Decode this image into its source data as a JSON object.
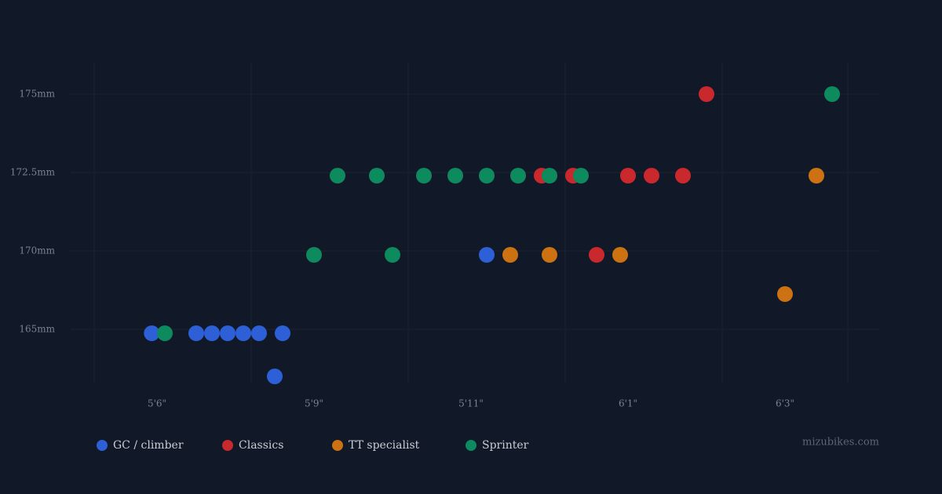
{
  "chart_data": {
    "type": "scatter",
    "xlim": [
      64.35,
      76.2
    ],
    "xticks": [
      {
        "value": 66,
        "label": "5'6\""
      },
      {
        "value": 69,
        "label": "5'9\""
      },
      {
        "value": 71,
        "label": "5'11\""
      },
      {
        "value": 73,
        "label": "6'1\""
      },
      {
        "value": 75,
        "label": "6'3\""
      }
    ],
    "ylim": [
      161.5,
      176
    ],
    "yticks": [
      {
        "value": 165,
        "label": "165mm"
      },
      {
        "value": 170,
        "label": "170mm"
      },
      {
        "value": 172.5,
        "label": "172.5mm"
      },
      {
        "value": 175,
        "label": "175mm"
      }
    ],
    "grid": true,
    "series": [
      {
        "name": "GC / climber",
        "color": "#2d60d6",
        "x": [
          65.9,
          66.75,
          67.05,
          67.35,
          67.65,
          67.95,
          68.4,
          68.25,
          71.2
        ],
        "values": [
          164.75,
          164.75,
          164.75,
          164.75,
          164.75,
          164.75,
          164.75,
          162,
          169.75
        ]
      },
      {
        "name": "Classics",
        "color": "#c9292c",
        "x": [
          74,
          71.9,
          72.3,
          73,
          73.3,
          73.7,
          72.6
        ],
        "values": [
          175,
          172.4,
          172.4,
          172.4,
          172.4,
          172.4,
          169.75
        ]
      },
      {
        "name": "TT specialist",
        "color": "#cc7212",
        "x": [
          71.5,
          72,
          72.9,
          75,
          75.4
        ],
        "values": [
          169.75,
          169.75,
          169.75,
          167.25,
          172.4
        ]
      },
      {
        "name": "Sprinter",
        "color": "#0d8a5e",
        "x": [
          75.6,
          66.15,
          69,
          70,
          69.3,
          69.8,
          70.4,
          70.8,
          71.2,
          71.6,
          72,
          72.4
        ],
        "values": [
          175,
          164.75,
          169.75,
          169.75,
          172.4,
          172.4,
          172.4,
          172.4,
          172.4,
          172.4,
          172.4,
          172.4
        ]
      }
    ],
    "footer": "mizubikes.com"
  }
}
